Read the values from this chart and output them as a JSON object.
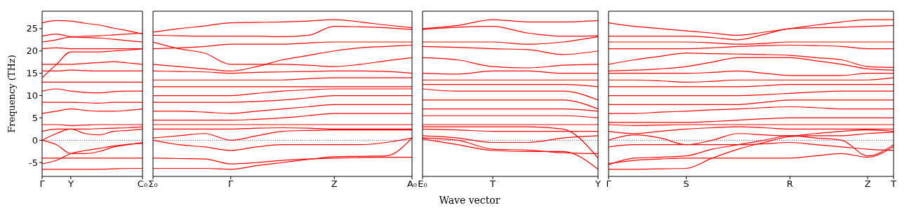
{
  "chart_data": [
    {
      "type": "line",
      "ylabel": "Frequency (THz)",
      "categories": [
        "Γ",
        null,
        "Y",
        null,
        null,
        null,
        null,
        "C₀"
      ],
      "ylim": [
        -8.1,
        28.9
      ],
      "yticks": [
        -5,
        0,
        5,
        10,
        15,
        20,
        25
      ],
      "ref_lines": [
        {
          "axis": "y",
          "value": 0,
          "color": "#0000ff",
          "line_style": "dotted"
        }
      ],
      "series": [
        {
          "color": "#ff0000",
          "values": [
            26.3,
            26.8,
            26.7,
            26.2,
            25.8,
            25.1,
            24.5,
            23.8
          ]
        },
        {
          "color": "#ff0000",
          "values": [
            23.3,
            23.8,
            23.2,
            23.3,
            23.4,
            23.6,
            23.8,
            24
          ]
        },
        {
          "color": "#ff0000",
          "values": [
            22,
            22.5,
            23.1,
            23,
            22.9,
            22.6,
            22.3,
            22
          ]
        },
        {
          "color": "#ff0000",
          "values": [
            20.5,
            20.7,
            20.5,
            20.5,
            20.5,
            20.5,
            20.5,
            20.5
          ]
        },
        {
          "color": "#ff0000",
          "values": [
            14,
            17,
            19.8,
            19.8,
            19.8,
            20,
            20.2,
            20.5
          ]
        },
        {
          "color": "#ff0000",
          "values": [
            17,
            17,
            17,
            17.2,
            17.4,
            17.6,
            17.3,
            17
          ]
        },
        {
          "color": "#ff0000",
          "values": [
            15.5,
            15.5,
            15.7,
            15.6,
            15.5,
            15.5,
            15.5,
            15.5
          ]
        },
        {
          "color": "#ff0000",
          "values": [
            13,
            13,
            13,
            13,
            13,
            13,
            13,
            13
          ]
        },
        {
          "color": "#ff0000",
          "values": [
            11,
            11.5,
            11,
            10.7,
            10.6,
            10.9,
            11,
            11
          ]
        },
        {
          "color": "#ff0000",
          "values": [
            8.5,
            8.5,
            8.5,
            8.4,
            8.3,
            8.5,
            8.5,
            8.5
          ]
        },
        {
          "color": "#ff0000",
          "values": [
            6,
            6.5,
            7,
            6.7,
            6.5,
            6.5,
            6.7,
            7
          ]
        },
        {
          "color": "#ff0000",
          "values": [
            3.5,
            3.5,
            3.3,
            3.4,
            3.5,
            3.5,
            3.5,
            3.5
          ]
        },
        {
          "color": "#ff0000",
          "values": [
            2,
            2.5,
            2.5,
            2.5,
            2.6,
            2.7,
            2.8,
            3
          ]
        },
        {
          "color": "#ff0000",
          "values": [
            0,
            1.5,
            2.5,
            1.5,
            1.2,
            2,
            2.2,
            2.5
          ]
        },
        {
          "color": "#ff0000",
          "values": [
            0,
            -1,
            -3,
            -3,
            -2.5,
            -1.5,
            -1,
            -0.5
          ]
        },
        {
          "color": "#ff0000",
          "values": [
            -5.3,
            -4.5,
            -3,
            -2.3,
            -1.8,
            -1.3,
            -0.9,
            -0.7
          ]
        },
        {
          "color": "#ff0000",
          "values": [
            -4,
            -4,
            -4,
            -4,
            -4,
            -4,
            -4,
            -4
          ]
        },
        {
          "color": "#ff0000",
          "values": [
            -6.5,
            -6.5,
            -6.5,
            -6.5,
            -6.5,
            -6.4,
            -6.3,
            -6.3
          ]
        }
      ]
    },
    {
      "type": "line",
      "tick_labels": "x",
      "categories": [
        "Σ₀",
        null,
        null,
        "Γ",
        null,
        null,
        null,
        "Z",
        null,
        null,
        "A₀"
      ],
      "ylim": [
        -8.1,
        28.9
      ],
      "yticks": [
        -5,
        0,
        5,
        10,
        15,
        20,
        25
      ],
      "ref_lines": [
        {
          "axis": "y",
          "value": 0,
          "color": "#0000ff",
          "line_style": "dotted"
        }
      ],
      "series": [
        {
          "color": "#ff0000",
          "values": [
            24.2,
            25,
            25.6,
            26.3,
            26.4,
            26.5,
            26.7,
            27,
            26.5,
            25.8,
            25.2
          ]
        },
        {
          "color": "#ff0000",
          "values": [
            23.5,
            23.4,
            23.3,
            23.3,
            23.3,
            23.2,
            23.5,
            25.5,
            25.4,
            25.2,
            24.8
          ]
        },
        {
          "color": "#ff0000",
          "values": [
            22,
            20.5,
            19.5,
            17,
            17,
            17,
            16.8,
            16.5,
            17,
            17.8,
            18.5
          ]
        },
        {
          "color": "#ff0000",
          "values": [
            20.5,
            20.7,
            21,
            21.5,
            21.5,
            21.5,
            21.8,
            22,
            22,
            22,
            22
          ]
        },
        {
          "color": "#ff0000",
          "values": [
            17,
            16.5,
            16,
            15.5,
            16.5,
            18,
            19,
            20,
            20.7,
            21,
            21.3
          ]
        },
        {
          "color": "#ff0000",
          "values": [
            15.5,
            15.4,
            15.3,
            15,
            15.2,
            15.3,
            15.4,
            15.5,
            15.5,
            15.4,
            15
          ]
        },
        {
          "color": "#ff0000",
          "values": [
            13.5,
            13.5,
            13.5,
            13.5,
            13.5,
            13.5,
            13.8,
            14,
            14,
            14,
            14
          ]
        },
        {
          "color": "#ff0000",
          "values": [
            12,
            12,
            12,
            12,
            12,
            12,
            12,
            12,
            12,
            12,
            12
          ]
        },
        {
          "color": "#ff0000",
          "values": [
            10,
            10,
            10,
            10,
            10.5,
            11,
            11.3,
            11.5,
            11.5,
            11.5,
            11.5
          ]
        },
        {
          "color": "#ff0000",
          "values": [
            8.5,
            8.5,
            8.5,
            8.5,
            8.7,
            9,
            9.5,
            10,
            10,
            10,
            10
          ]
        },
        {
          "color": "#ff0000",
          "values": [
            6.5,
            6.5,
            6.3,
            6,
            6.5,
            7,
            7.5,
            8,
            8,
            8,
            8
          ]
        },
        {
          "color": "#ff0000",
          "values": [
            4.5,
            4.5,
            4.5,
            4.5,
            4.7,
            5,
            5.5,
            6,
            6,
            6,
            6
          ]
        },
        {
          "color": "#ff0000",
          "values": [
            3.5,
            3.5,
            3.5,
            3.5,
            3.5,
            3.5,
            3.5,
            3.5,
            3.5,
            3.5,
            3.5
          ]
        },
        {
          "color": "#ff0000",
          "values": [
            2.5,
            2.5,
            2.5,
            2.5,
            2.7,
            2.8,
            2.7,
            2.5,
            2.5,
            2.5,
            2.5
          ]
        },
        {
          "color": "#ff0000",
          "values": [
            0.5,
            1,
            1.5,
            0,
            1,
            2,
            2.2,
            2.3,
            2.3,
            2.3,
            2.3
          ]
        },
        {
          "color": "#ff0000",
          "values": [
            0,
            -1,
            -1.5,
            -2.3,
            -1.5,
            -1,
            -1,
            -1,
            -1,
            -0.5,
            0.5
          ]
        },
        {
          "color": "#ff0000",
          "values": [
            -4,
            -4.1,
            -4.2,
            -5.3,
            -5,
            -4.5,
            -4.2,
            -4,
            -3.9,
            -3.8,
            -3.8
          ]
        },
        {
          "color": "#ff0000",
          "values": [
            -6.3,
            -6.3,
            -6.3,
            -6.5,
            -5.7,
            -5,
            -4.3,
            -3.7,
            -3.6,
            -3.5,
            0.5
          ]
        }
      ]
    },
    {
      "type": "line",
      "tick_labels": "x",
      "xlabel": "Wave vector",
      "categories": [
        "E₀",
        null,
        "T",
        null,
        null,
        "Y"
      ],
      "ylim": [
        -8.1,
        28.9
      ],
      "yticks": [
        -5,
        0,
        5,
        10,
        15,
        20,
        25
      ],
      "ref_lines": [
        {
          "axis": "y",
          "value": 0,
          "color": "#0000ff",
          "line_style": "dotted"
        }
      ],
      "series": [
        {
          "color": "#ff0000",
          "values": [
            25,
            25.7,
            27,
            26.5,
            26.5,
            26.8
          ]
        },
        {
          "color": "#ff0000",
          "values": [
            24.8,
            25.3,
            25.5,
            24,
            23.3,
            23.4
          ]
        },
        {
          "color": "#ff0000",
          "values": [
            22,
            22,
            22,
            21.5,
            22,
            23.2
          ]
        },
        {
          "color": "#ff0000",
          "values": [
            21,
            20.8,
            20.5,
            20.3,
            19.2,
            20
          ]
        },
        {
          "color": "#ff0000",
          "values": [
            18.5,
            18,
            16.5,
            16.2,
            16.8,
            17
          ]
        },
        {
          "color": "#ff0000",
          "values": [
            15,
            14.8,
            15.5,
            15.5,
            15,
            15
          ]
        },
        {
          "color": "#ff0000",
          "values": [
            13.5,
            13.5,
            13.5,
            13.5,
            13.5,
            13.5
          ]
        },
        {
          "color": "#ff0000",
          "values": [
            12.5,
            12.5,
            12.5,
            12.5,
            12.5,
            12
          ]
        },
        {
          "color": "#ff0000",
          "values": [
            11.5,
            11,
            11,
            11,
            11,
            9
          ]
        },
        {
          "color": "#ff0000",
          "values": [
            9,
            9,
            9,
            9,
            9,
            7
          ]
        },
        {
          "color": "#ff0000",
          "values": [
            7,
            7,
            7,
            7,
            7,
            6.5
          ]
        },
        {
          "color": "#ff0000",
          "values": [
            5.5,
            5.5,
            5.5,
            5.5,
            5.5,
            5
          ]
        },
        {
          "color": "#ff0000",
          "values": [
            3.5,
            3.5,
            3.5,
            3.5,
            3.5,
            3.5
          ]
        },
        {
          "color": "#ff0000",
          "values": [
            2.5,
            2.3,
            2,
            2,
            2,
            2
          ]
        },
        {
          "color": "#ff0000",
          "values": [
            1,
            0.5,
            -0.5,
            -0.5,
            0.5,
            1
          ]
        },
        {
          "color": "#ff0000",
          "values": [
            0.5,
            0,
            -2,
            -2.2,
            -2.8,
            -3
          ]
        },
        {
          "color": "#ff0000",
          "values": [
            0.3,
            -1,
            -2.3,
            -2.5,
            -2.5,
            -6.5
          ]
        },
        {
          "color": "#ff0000",
          "values": [
            3,
            3,
            3,
            3,
            2.5,
            -4
          ]
        }
      ]
    },
    {
      "type": "line",
      "tick_labels": "x",
      "categories": [
        "Γ",
        null,
        null,
        "S",
        null,
        null,
        null,
        "R",
        null,
        null,
        "Z",
        "T"
      ],
      "ylim": [
        -8.1,
        28.9
      ],
      "yticks": [
        -5,
        0,
        5,
        10,
        15,
        20,
        25
      ],
      "ref_lines": [
        {
          "axis": "y",
          "value": 0,
          "color": "#0000ff",
          "line_style": "dotted"
        }
      ],
      "series": [
        {
          "color": "#ff0000",
          "values": [
            26.3,
            25.5,
            25,
            24.5,
            24,
            23.5,
            24.2,
            25,
            25.8,
            26.5,
            27,
            27
          ]
        },
        {
          "color": "#ff0000",
          "values": [
            23.3,
            23.3,
            23.3,
            23.3,
            23,
            22.5,
            23.7,
            25,
            25.2,
            25.3,
            25.5,
            25.7
          ]
        },
        {
          "color": "#ff0000",
          "values": [
            22,
            22,
            22,
            22,
            21.8,
            21.5,
            21.7,
            22,
            22,
            22,
            22,
            22
          ]
        },
        {
          "color": "#ff0000",
          "values": [
            20.5,
            20.5,
            20.5,
            20.5,
            20.7,
            21,
            21.2,
            21.3,
            21.2,
            21,
            20.5,
            20.5
          ]
        },
        {
          "color": "#ff0000",
          "values": [
            17,
            18,
            18.8,
            19.5,
            19.4,
            19.3,
            19.2,
            19,
            18.5,
            18,
            16.5,
            16.3
          ]
        },
        {
          "color": "#ff0000",
          "values": [
            15.5,
            15.7,
            16,
            16.5,
            17.5,
            18.5,
            18.5,
            18.5,
            17.8,
            17,
            16,
            15.7
          ]
        },
        {
          "color": "#ff0000",
          "values": [
            15,
            15,
            15,
            15,
            15.2,
            15.5,
            15,
            14.5,
            14.5,
            14.5,
            15,
            15
          ]
        },
        {
          "color": "#ff0000",
          "values": [
            13.5,
            13.5,
            13.3,
            13,
            13.2,
            13.5,
            13.5,
            13.5,
            13.5,
            13.5,
            13.5,
            14
          ]
        },
        {
          "color": "#ff0000",
          "values": [
            12,
            12,
            12,
            12,
            12,
            12,
            12.2,
            12.5,
            12.5,
            12.5,
            12.5,
            12.5
          ]
        },
        {
          "color": "#ff0000",
          "values": [
            10,
            10,
            10,
            10,
            10,
            10,
            10.2,
            10.5,
            10.8,
            11,
            11,
            11
          ]
        },
        {
          "color": "#ff0000",
          "values": [
            8,
            8,
            8,
            8,
            8,
            8,
            8.5,
            9,
            9,
            9,
            9,
            9
          ]
        },
        {
          "color": "#ff0000",
          "values": [
            6,
            6,
            6.3,
            6.5,
            6.8,
            7,
            7.3,
            7.5,
            7.3,
            7,
            7,
            7
          ]
        },
        {
          "color": "#ff0000",
          "values": [
            4,
            4,
            4,
            4,
            4.2,
            4.5,
            4.8,
            5,
            5,
            5,
            5,
            5
          ]
        },
        {
          "color": "#ff0000",
          "values": [
            3.5,
            3.3,
            3.4,
            3.5,
            3.5,
            3.5,
            3.5,
            3.5,
            3.5,
            3.5,
            3.5,
            3.5
          ]
        },
        {
          "color": "#ff0000",
          "values": [
            2,
            1.5,
            2,
            2.5,
            2.8,
            3,
            2.8,
            2.5,
            2.5,
            2.5,
            2.5,
            2.5
          ]
        },
        {
          "color": "#ff0000",
          "values": [
            0,
            1.2,
            0.5,
            -1,
            0,
            1.5,
            1.2,
            1,
            1.5,
            2,
            2.3,
            2
          ]
        },
        {
          "color": "#ff0000",
          "values": [
            -1.5,
            -1,
            -1,
            -1,
            -1,
            -1,
            -0.8,
            -0.5,
            -1,
            -1.5,
            -2,
            -2.3
          ]
        },
        {
          "color": "#ff0000",
          "values": [
            -5.5,
            -4,
            -3.8,
            -3.5,
            -2,
            -1,
            0,
            1,
            0.5,
            0,
            -3.5,
            -1
          ]
        },
        {
          "color": "#ff0000",
          "values": [
            -5.2,
            -4.5,
            -4.2,
            -4,
            -4,
            -4,
            -4,
            -4,
            -3.5,
            -3,
            -3.8,
            -1.4
          ]
        },
        {
          "color": "#ff0000",
          "values": [
            -6.5,
            -6.5,
            -6.4,
            -6.3,
            -4,
            -2,
            -0.5,
            0.8,
            1,
            1,
            1.5,
            1.8
          ]
        }
      ]
    }
  ]
}
